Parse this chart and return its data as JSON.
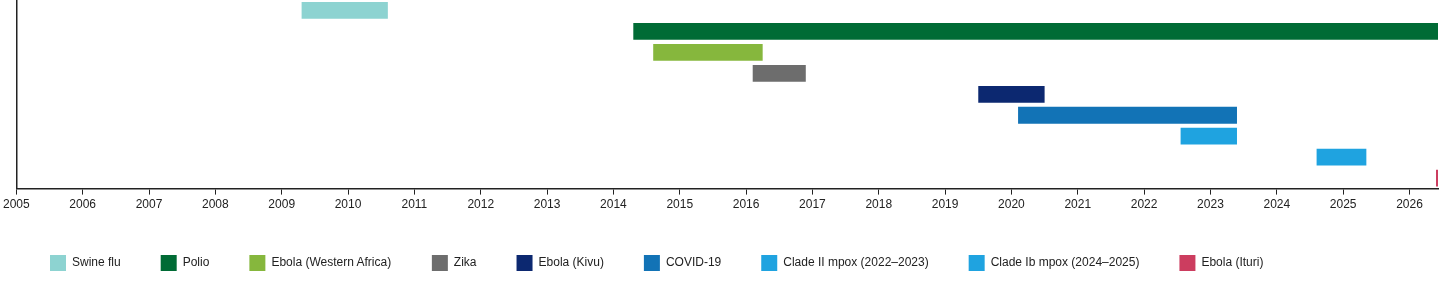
{
  "chart_data": {
    "type": "bar",
    "orientation": "horizontal",
    "categories": [
      null,
      null,
      null,
      null,
      null,
      null,
      null,
      null,
      null
    ],
    "xlim": [
      2005,
      2026.43
    ],
    "xticks": [
      2005,
      2006,
      2007,
      2008,
      2009,
      2010,
      2011,
      2012,
      2013,
      2014,
      2015,
      2016,
      2017,
      2018,
      2019,
      2020,
      2021,
      2022,
      2023,
      2024,
      2025,
      2026
    ],
    "grid": false,
    "legend": "bottom",
    "series": [
      {
        "name": "Swine flu",
        "color": "#8dd3d1",
        "values": [
          1.3,
          null,
          null,
          null,
          null,
          null,
          null,
          null,
          null
        ],
        "base": [
          2009.3,
          null,
          null,
          null,
          null,
          null,
          null,
          null,
          null
        ]
      },
      {
        "name": "Polio",
        "color": "#006b35",
        "values": [
          null,
          12.13,
          null,
          null,
          null,
          null,
          null,
          null,
          null
        ],
        "base": [
          null,
          2014.3,
          null,
          null,
          null,
          null,
          null,
          null,
          null
        ]
      },
      {
        "name": "Ebola (Western Africa)",
        "color": "#86b73d",
        "values": [
          null,
          null,
          1.65,
          null,
          null,
          null,
          null,
          null,
          null
        ],
        "base": [
          null,
          null,
          2014.6,
          null,
          null,
          null,
          null,
          null,
          null
        ]
      },
      {
        "name": "Zika",
        "color": "#6d6d6d",
        "values": [
          null,
          null,
          null,
          0.8,
          null,
          null,
          null,
          null,
          null
        ],
        "base": [
          null,
          null,
          null,
          2016.1,
          null,
          null,
          null,
          null,
          null
        ]
      },
      {
        "name": "Ebola (Kivu)",
        "color": "#0c2870",
        "values": [
          null,
          null,
          null,
          null,
          1.0,
          null,
          null,
          null,
          null
        ],
        "base": [
          null,
          null,
          null,
          null,
          2019.5,
          null,
          null,
          null,
          null
        ]
      },
      {
        "name": "COVID-19",
        "color": "#1273b6",
        "values": [
          null,
          null,
          null,
          null,
          null,
          3.3,
          null,
          null,
          null
        ],
        "base": [
          null,
          null,
          null,
          null,
          null,
          2020.1,
          null,
          null,
          null
        ]
      },
      {
        "name": "Clade II mpox (2022–2023)",
        "color": "#1fa3e0",
        "values": [
          null,
          null,
          null,
          null,
          null,
          null,
          0.85,
          null,
          null
        ],
        "base": [
          null,
          null,
          null,
          null,
          null,
          null,
          2022.55,
          null,
          null
        ]
      },
      {
        "name": "Clade Ib mpox (2024–2025)",
        "color": "#1fa3e0",
        "values": [
          null,
          null,
          null,
          null,
          null,
          null,
          null,
          0.75,
          null
        ],
        "base": [
          null,
          null,
          null,
          null,
          null,
          null,
          null,
          2024.6,
          null
        ]
      },
      {
        "name": "Ebola (Ituri)",
        "color": "#cc3d5f",
        "values": [
          null,
          null,
          null,
          null,
          null,
          null,
          null,
          null,
          0.03
        ],
        "base": [
          null,
          null,
          null,
          null,
          null,
          null,
          null,
          null,
          2026.4
        ]
      }
    ]
  }
}
